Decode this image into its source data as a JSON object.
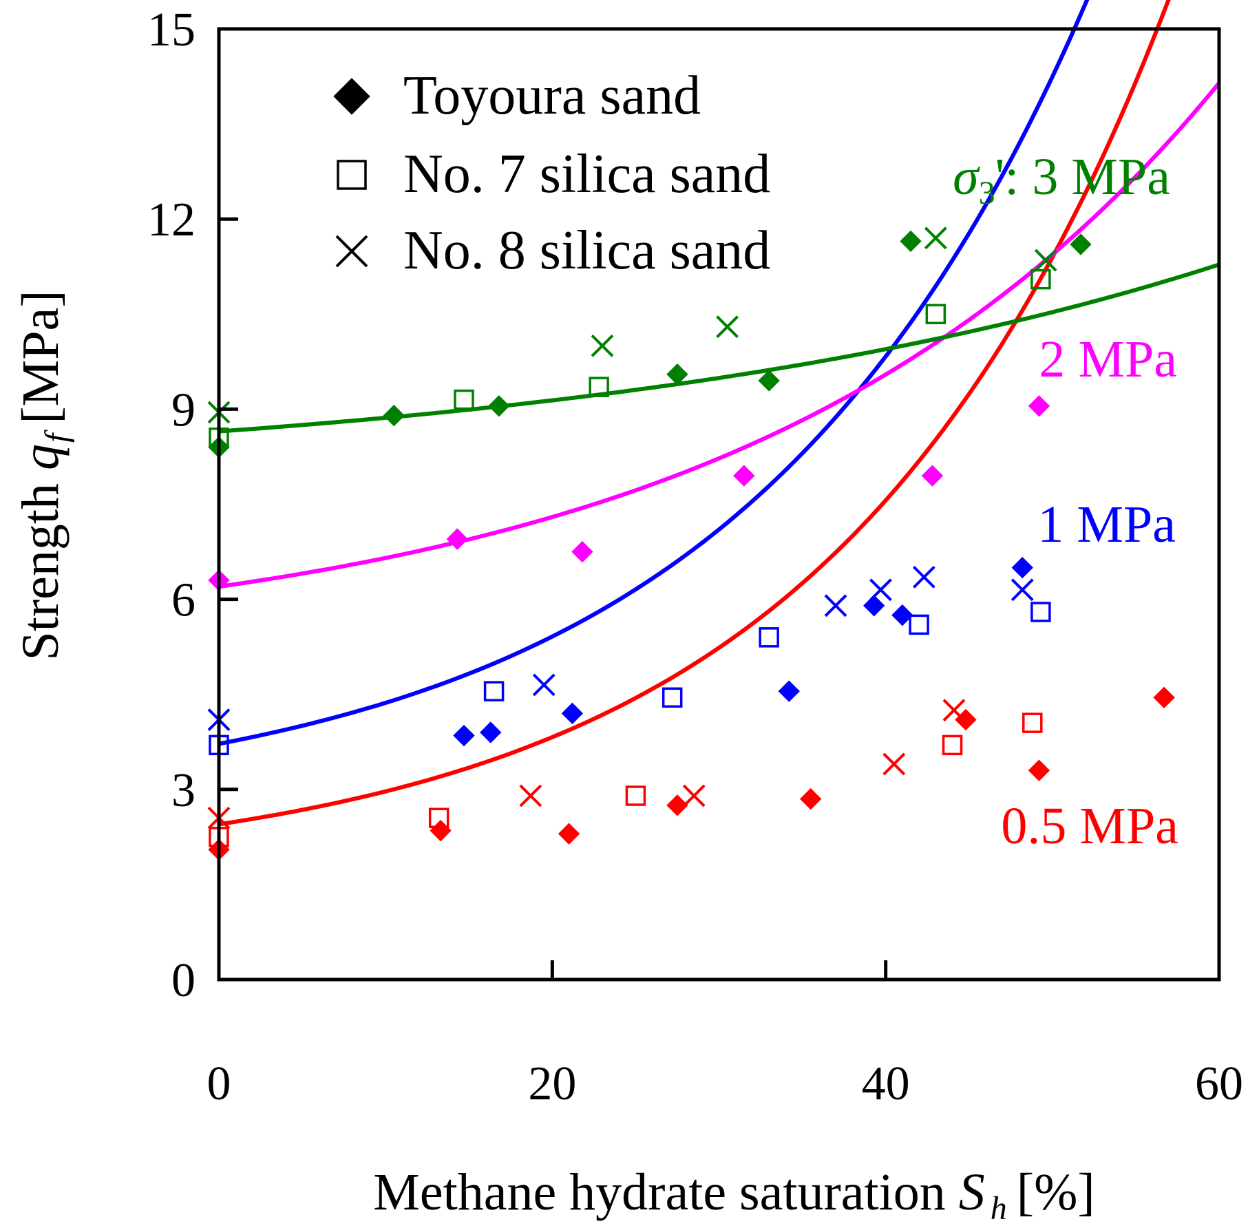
{
  "chart_data": {
    "type": "scatter",
    "xlabel": "Methane hydrate saturation",
    "xlabel_symbol": "S",
    "xlabel_subscript": "h",
    "xlabel_unit": "[%]",
    "ylabel": "Strength",
    "ylabel_symbol": "q",
    "ylabel_subscript": "f",
    "ylabel_unit": "[MPa]",
    "xlim": [
      0,
      60
    ],
    "ylim": [
      0,
      15
    ],
    "x_ticks": [
      0,
      20,
      40,
      60
    ],
    "y_ticks": [
      0,
      3,
      6,
      9,
      12,
      15
    ],
    "x_tick_labels": [
      "0",
      "20",
      "40",
      "60"
    ],
    "y_tick_labels": [
      "0",
      "3",
      "6",
      "9",
      "12",
      "15"
    ],
    "legend": {
      "position": "top-left",
      "entries": [
        {
          "label": "Toyoura sand",
          "marker": "diamond"
        },
        {
          "label": "No. 7 silica sand",
          "marker": "square"
        },
        {
          "label": "No. 8 silica sand",
          "marker": "x"
        }
      ]
    },
    "series": [
      {
        "name": "0.5 MPa",
        "label_text": "0.5 MPa",
        "color": "#ff0000",
        "fit_curve": {
          "x0": 0,
          "y0": 2.45,
          "scale": 0.8,
          "rate": 0.05
        },
        "toyoura": [
          [
            0,
            2.05
          ],
          [
            13.3,
            2.35
          ],
          [
            21,
            2.3
          ],
          [
            27.5,
            2.75
          ],
          [
            35.5,
            2.85
          ],
          [
            44.8,
            4.1
          ],
          [
            49.2,
            3.3
          ],
          [
            56.7,
            4.45
          ]
        ],
        "no7": [
          [
            0,
            2.25
          ],
          [
            13.2,
            2.55
          ],
          [
            25,
            2.9
          ],
          [
            44,
            3.7
          ],
          [
            48.8,
            4.05
          ]
        ],
        "no8": [
          [
            0,
            2.55
          ],
          [
            18.7,
            2.9
          ],
          [
            28.5,
            2.9
          ],
          [
            40.5,
            3.4
          ],
          [
            44.1,
            4.25
          ]
        ]
      },
      {
        "name": "1 MPa",
        "label_text": "1 MPa",
        "color": "#0000ff",
        "fit_curve": {
          "x0": 0,
          "y0": 3.72,
          "scale": 1.05,
          "rate": 0.048
        },
        "toyoura": [
          [
            14.7,
            3.85
          ],
          [
            16.3,
            3.9
          ],
          [
            21.2,
            4.2
          ],
          [
            34.2,
            4.55
          ],
          [
            39.3,
            5.9
          ],
          [
            41,
            5.75
          ],
          [
            48.2,
            6.5
          ]
        ],
        "no7": [
          [
            0,
            3.7
          ],
          [
            16.5,
            4.55
          ],
          [
            27.2,
            4.45
          ],
          [
            33,
            5.4
          ],
          [
            42,
            5.6
          ],
          [
            49.3,
            5.8
          ]
        ],
        "no8": [
          [
            0,
            4.1
          ],
          [
            19.5,
            4.65
          ],
          [
            37,
            5.9
          ],
          [
            39.7,
            6.15
          ],
          [
            42.3,
            6.35
          ],
          [
            48.2,
            6.15
          ]
        ]
      },
      {
        "name": "2 MPa",
        "label_text": "2 MPa",
        "color": "#ff00ff",
        "fit_curve": {
          "x0": 0,
          "y0": 6.2,
          "scale": 1.05,
          "rate": 0.0358
        },
        "toyoura": [
          [
            0,
            6.3
          ],
          [
            14.3,
            6.95
          ],
          [
            21.8,
            6.75
          ],
          [
            31.5,
            7.95
          ],
          [
            42.8,
            7.95
          ],
          [
            49.2,
            9.05
          ]
        ],
        "no7": [],
        "no8": []
      },
      {
        "name": "3 MPa",
        "label_text": "3 MPa",
        "prefix_symbol": "σ",
        "prefix_subscript": "3",
        "prefix_suffix": "':",
        "color": "#008000",
        "fit_curve": {
          "x0": 0,
          "y0": 8.65,
          "scale": 0.75,
          "rate": 0.0251
        },
        "toyoura": [
          [
            0,
            8.4
          ],
          [
            10.5,
            8.9
          ],
          [
            16.8,
            9.05
          ],
          [
            27.5,
            9.55
          ],
          [
            33,
            9.45
          ],
          [
            41.5,
            11.65
          ],
          [
            51.7,
            11.6
          ]
        ],
        "no7": [
          [
            0,
            8.55
          ],
          [
            14.7,
            9.15
          ],
          [
            22.8,
            9.35
          ],
          [
            43,
            10.5
          ],
          [
            49.3,
            11.05
          ]
        ],
        "no8": [
          [
            0,
            8.95
          ],
          [
            23,
            10
          ],
          [
            30.5,
            10.3
          ],
          [
            43,
            11.7
          ],
          [
            49.6,
            11.35
          ]
        ]
      }
    ]
  }
}
